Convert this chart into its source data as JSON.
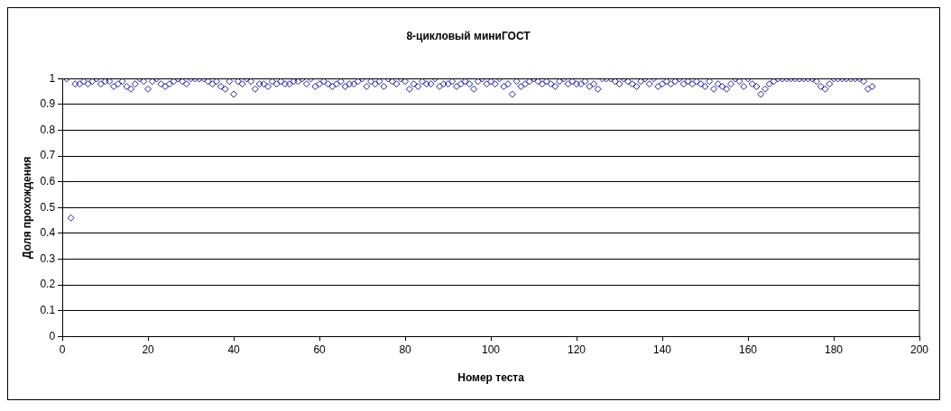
{
  "chart_data": {
    "type": "scatter",
    "title": "8-цикловый миниГОСТ",
    "xlabel": "Номер теста",
    "ylabel": "Доля прохождения",
    "x": [
      1,
      2,
      3,
      4,
      5,
      6,
      7,
      8,
      9,
      10,
      11,
      12,
      13,
      14,
      15,
      16,
      17,
      18,
      19,
      20,
      21,
      22,
      23,
      24,
      25,
      26,
      27,
      28,
      29,
      30,
      31,
      32,
      33,
      34,
      35,
      36,
      37,
      38,
      39,
      40,
      41,
      42,
      43,
      44,
      45,
      46,
      47,
      48,
      49,
      50,
      51,
      52,
      53,
      54,
      55,
      56,
      57,
      58,
      59,
      60,
      61,
      62,
      63,
      64,
      65,
      66,
      67,
      68,
      69,
      70,
      71,
      72,
      73,
      74,
      75,
      76,
      77,
      78,
      79,
      80,
      81,
      82,
      83,
      84,
      85,
      86,
      87,
      88,
      89,
      90,
      91,
      92,
      93,
      94,
      95,
      96,
      97,
      98,
      99,
      100,
      101,
      102,
      103,
      104,
      105,
      106,
      107,
      108,
      109,
      110,
      111,
      112,
      113,
      114,
      115,
      116,
      117,
      118,
      119,
      120,
      121,
      122,
      123,
      124,
      125,
      126,
      127,
      128,
      129,
      130,
      131,
      132,
      133,
      134,
      135,
      136,
      137,
      138,
      139,
      140,
      141,
      142,
      143,
      144,
      145,
      146,
      147,
      148,
      149,
      150,
      151,
      152,
      153,
      154,
      155,
      156,
      157,
      158,
      159,
      160,
      161,
      162,
      163,
      164,
      165,
      166,
      167,
      168,
      169,
      170,
      171,
      172,
      173,
      174,
      175,
      176,
      177,
      178,
      179,
      180,
      181,
      182,
      183,
      184,
      185,
      186,
      187,
      188,
      189
    ],
    "series": [
      {
        "color": "#1f1f99",
        "values": [
          1,
          0.46,
          0.98,
          0.98,
          0.99,
          0.98,
          0.99,
          1,
          0.98,
          0.99,
          0.99,
          0.97,
          0.98,
          0.99,
          0.97,
          0.96,
          0.98,
          1,
          0.99,
          0.96,
          0.99,
          1,
          0.98,
          0.97,
          0.98,
          0.99,
          1,
          0.99,
          0.98,
          1,
          1,
          1,
          1,
          0.99,
          0.98,
          0.99,
          0.97,
          0.96,
          0.99,
          0.94,
          0.99,
          0.98,
          1,
          0.99,
          0.96,
          0.98,
          0.98,
          0.97,
          0.99,
          0.98,
          0.99,
          0.98,
          0.98,
          0.99,
          0.99,
          1,
          0.98,
          1,
          0.97,
          0.98,
          0.99,
          0.98,
          0.97,
          0.98,
          0.99,
          0.97,
          0.98,
          0.98,
          0.99,
          1,
          0.97,
          0.99,
          0.98,
          0.99,
          0.97,
          1,
          0.99,
          0.98,
          1,
          0.99,
          0.96,
          0.98,
          0.97,
          0.99,
          0.98,
          0.98,
          1,
          0.97,
          0.98,
          0.98,
          0.99,
          0.97,
          0.98,
          0.99,
          0.98,
          0.96,
          0.99,
          1,
          0.98,
          0.99,
          0.98,
          1,
          0.97,
          0.98,
          0.94,
          0.99,
          0.97,
          0.98,
          0.99,
          1,
          0.99,
          0.98,
          0.99,
          0.98,
          0.97,
          0.99,
          1,
          0.98,
          0.99,
          0.98,
          0.98,
          0.99,
          0.97,
          0.98,
          0.96,
          1,
          1,
          1,
          0.99,
          0.98,
          1,
          0.99,
          0.98,
          0.97,
          0.99,
          1,
          0.98,
          1,
          0.97,
          0.98,
          0.99,
          0.98,
          0.99,
          1,
          0.98,
          0.99,
          0.98,
          0.99,
          0.98,
          0.97,
          0.99,
          0.96,
          0.98,
          0.97,
          0.96,
          0.98,
          1,
          0.99,
          0.97,
          1,
          0.98,
          0.97,
          0.94,
          0.96,
          0.98,
          0.99,
          1,
          1,
          1,
          1,
          1,
          1,
          1,
          1,
          1,
          0.99,
          0.97,
          0.96,
          0.98,
          1,
          1,
          1,
          1,
          1,
          1,
          1,
          0.99,
          0.96,
          0.97
        ]
      }
    ],
    "xlim": [
      0,
      200
    ],
    "xticks": [
      0,
      20,
      40,
      60,
      80,
      100,
      120,
      140,
      160,
      180,
      200
    ],
    "ylim": [
      0,
      1
    ],
    "yticks": [
      0,
      0.1,
      0.2,
      0.3,
      0.4,
      0.5,
      0.6,
      0.7,
      0.8,
      0.9,
      1
    ],
    "grid": "y",
    "legend": false,
    "marker": "diamond"
  }
}
